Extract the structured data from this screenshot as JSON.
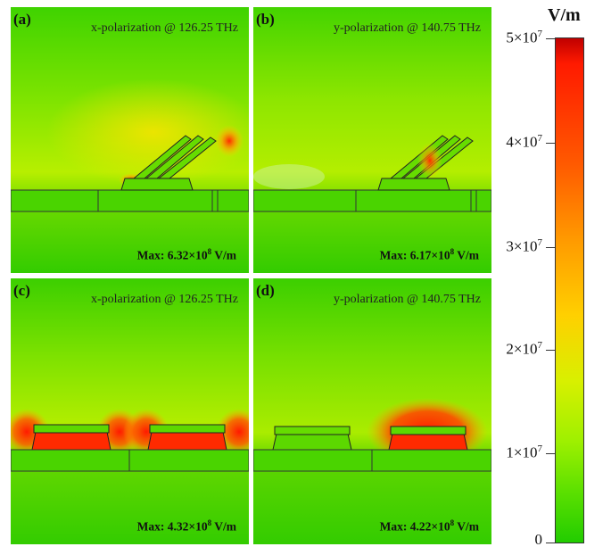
{
  "panels": [
    {
      "label": "(a)",
      "polarization": "x-polarization @ 126.25 THz",
      "max_prefix": "Max: 6.32×10",
      "max_exp": "8",
      "max_unit": " V/m"
    },
    {
      "label": "(b)",
      "polarization": "y-polarization @ 140.75 THz",
      "max_prefix": "Max: 6.17×10",
      "max_exp": "8",
      "max_unit": " V/m"
    },
    {
      "label": "(c)",
      "polarization": "x-polarization @ 126.25 THz",
      "max_prefix": "Max: 4.32×10",
      "max_exp": "8",
      "max_unit": " V/m"
    },
    {
      "label": "(d)",
      "polarization": "y-polarization @ 140.75 THz",
      "max_prefix": "Max: 4.22×10",
      "max_exp": "8",
      "max_unit": " V/m"
    }
  ],
  "colorbar": {
    "unit": "V/m",
    "ticks": [
      {
        "base": "5×10",
        "exp": "7"
      },
      {
        "base": "4×10",
        "exp": "7"
      },
      {
        "base": "3×10",
        "exp": "7"
      },
      {
        "base": "2×10",
        "exp": "7"
      },
      {
        "base": "1×10",
        "exp": "7"
      },
      {
        "base": "0",
        "exp": ""
      }
    ]
  }
}
